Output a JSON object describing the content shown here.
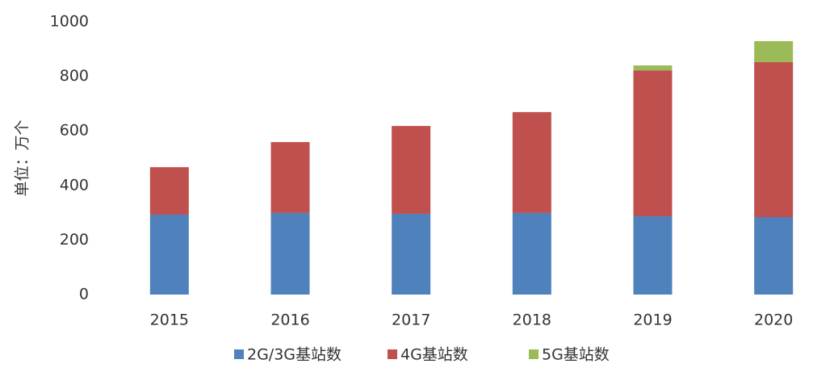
{
  "chart_data": {
    "type": "stacked_bar",
    "y_label": "单位：万个",
    "categories": [
      "2015",
      "2016",
      "2017",
      "2018",
      "2019",
      "2020"
    ],
    "series": [
      {
        "name": "2G/3G基站数",
        "color": "#4f81bd",
        "values": [
          293,
          299,
          296,
          299,
          287,
          284
        ]
      },
      {
        "name": "4G基站数",
        "color": "#c0504d",
        "values": [
          174,
          260,
          322,
          370,
          535,
          568
        ]
      },
      {
        "name": "5G基站数",
        "color": "#9bbb59",
        "values": [
          0,
          0,
          0,
          0,
          18,
          77
        ]
      }
    ],
    "ylim": [
      0,
      1000
    ],
    "yticks": [
      0,
      200,
      400,
      600,
      800,
      1000
    ],
    "grid": false,
    "legend": "bottom"
  }
}
